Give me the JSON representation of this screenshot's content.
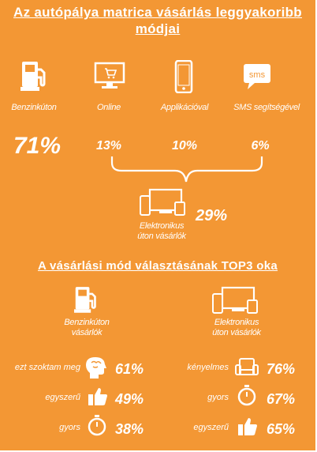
{
  "title1_line1": "Az autópálya matrica vásárlás leggyakoribb",
  "title1_line2": "módjai",
  "methods": [
    {
      "label": "Benzinkúton",
      "percent": "71%",
      "icon": "fuel-pump-icon"
    },
    {
      "label": "Online",
      "percent": "13%",
      "icon": "monitor-cart-icon"
    },
    {
      "label": "Applikációval",
      "percent": "10%",
      "icon": "smartphone-icon"
    },
    {
      "label": "SMS segítségével",
      "percent": "6%",
      "icon": "sms-bubble-icon"
    }
  ],
  "sms_icon_text": "sms",
  "electronic": {
    "line1": "Elektronikus",
    "line2": "úton vásárlók",
    "percent": "29%",
    "icon": "devices-icon"
  },
  "title2": "A vásárlási mód választásának TOP3 oka",
  "left_group": {
    "line1": "Benzinkúton",
    "line2": "vásárlók",
    "icon": "fuel-pump-icon",
    "reasons": [
      {
        "label": "ezt szoktam meg",
        "percent": "61%",
        "icon": "head-brain-icon"
      },
      {
        "label": "egyszerű",
        "percent": "49%",
        "icon": "thumbs-up-icon"
      },
      {
        "label": "gyors",
        "percent": "38%",
        "icon": "stopwatch-icon"
      }
    ]
  },
  "right_group": {
    "line1": "Elektronikus",
    "line2": "úton vásárlók",
    "icon": "devices-icon",
    "reasons": [
      {
        "label": "kényelmes",
        "percent": "76%",
        "icon": "armchair-icon"
      },
      {
        "label": "gyors",
        "percent": "67%",
        "icon": "stopwatch-icon"
      },
      {
        "label": "egyszerű",
        "percent": "65%",
        "icon": "thumbs-up-icon"
      }
    ]
  },
  "colors": {
    "background": "#f39734",
    "foreground": "#ffffff"
  }
}
